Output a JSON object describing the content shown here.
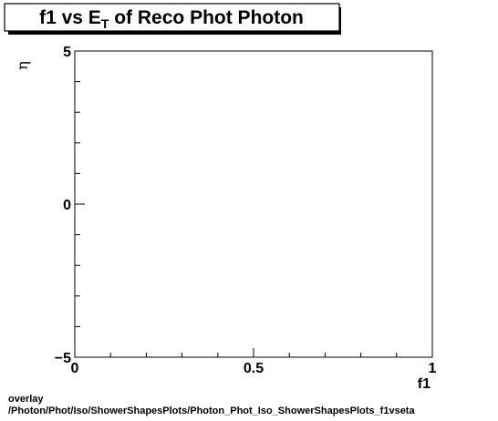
{
  "chart_data": {
    "type": "scatter",
    "title": {
      "prefix": "f1 vs E",
      "subscript": "T",
      "suffix": " of Reco Phot Photon"
    },
    "xlabel": "f1",
    "ylabel": "η",
    "xlim": [
      0,
      1
    ],
    "ylim": [
      -5,
      5
    ],
    "x_ticks": [
      "0",
      "0.5",
      "1"
    ],
    "y_ticks": [
      "5",
      "0",
      "−5"
    ],
    "points": [],
    "grid": false,
    "legend": "none"
  },
  "footer": {
    "line1": "overlay",
    "line2": "/Photon/Phot/Iso/ShowerShapesPlots/Photon_Phot_Iso_ShowerShapesPlots_f1vseta"
  }
}
